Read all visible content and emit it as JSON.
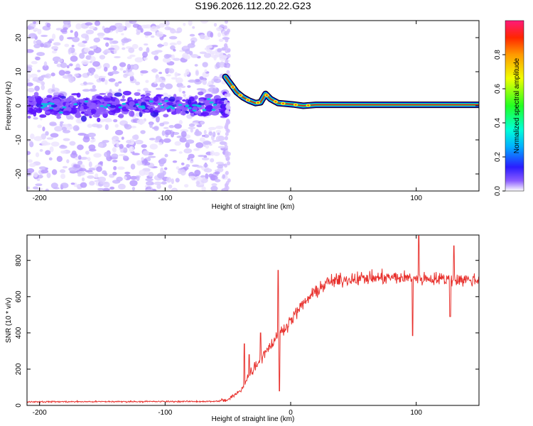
{
  "title": "S196.2026.112.20.22.G23",
  "colors": {
    "snr_line": "#e8312d",
    "outline": "#000000",
    "scatter_faint": "#d9c8ff",
    "scatter_strong": "#5a12ff"
  },
  "chart_data": [
    {
      "type": "heatmap",
      "name": "spectrogram",
      "xlabel": "Height of straight line (km)",
      "ylabel": "Frequency (Hz)",
      "xlim": [
        -210,
        150
      ],
      "ylim": [
        -25,
        25
      ],
      "xticks": [
        -200,
        -100,
        0,
        100
      ],
      "yticks": [
        -20,
        -10,
        0,
        10,
        20
      ],
      "xtick_labels": [
        "-200",
        "-100",
        "0",
        "100"
      ],
      "ytick_labels": [
        "-20",
        "-10",
        "0",
        "10",
        "20"
      ],
      "signal_ridge": [
        {
          "x": -52,
          "y": 8.5
        },
        {
          "x": -47,
          "y": 6.0
        },
        {
          "x": -43,
          "y": 4.0
        },
        {
          "x": -38,
          "y": 2.5
        },
        {
          "x": -33,
          "y": 1.5
        },
        {
          "x": -28,
          "y": 0.8
        },
        {
          "x": -24,
          "y": 1.0
        },
        {
          "x": -20,
          "y": 3.5
        },
        {
          "x": -16,
          "y": 2.0
        },
        {
          "x": -10,
          "y": 0.8
        },
        {
          "x": -4,
          "y": 0.6
        },
        {
          "x": 2,
          "y": 0.4
        },
        {
          "x": 10,
          "y": 0.0
        },
        {
          "x": 20,
          "y": 0.3
        },
        {
          "x": 60,
          "y": 0.3
        },
        {
          "x": 100,
          "y": 0.3
        },
        {
          "x": 150,
          "y": 0.3
        }
      ],
      "colorbar": {
        "label": "Normalized spectral amplitude",
        "range": [
          0,
          1
        ],
        "ticks": [
          0.0,
          0.2,
          0.4,
          0.6,
          0.8
        ],
        "tick_labels": [
          "0.0",
          "0.2",
          "0.4",
          "0.6",
          "0.8"
        ]
      }
    },
    {
      "type": "line",
      "name": "snr",
      "xlabel": "Height of straight line (km)",
      "ylabel": "SNR (10 * v/v)",
      "xlim": [
        -210,
        150
      ],
      "ylim": [
        0,
        940
      ],
      "xticks": [
        -200,
        -100,
        0,
        100
      ],
      "yticks": [
        0,
        200,
        400,
        600,
        800
      ],
      "xtick_labels": [
        "-200",
        "-100",
        "0",
        "100"
      ],
      "ytick_labels": [
        "0",
        "200",
        "400",
        "600",
        "800"
      ],
      "trend": [
        {
          "x": -210,
          "y": 20
        },
        {
          "x": -60,
          "y": 22
        },
        {
          "x": -50,
          "y": 30
        },
        {
          "x": -40,
          "y": 80
        },
        {
          "x": -30,
          "y": 200
        },
        {
          "x": -20,
          "y": 300
        },
        {
          "x": -10,
          "y": 380
        },
        {
          "x": 0,
          "y": 470
        },
        {
          "x": 10,
          "y": 560
        },
        {
          "x": 20,
          "y": 630
        },
        {
          "x": 30,
          "y": 680
        },
        {
          "x": 50,
          "y": 700
        },
        {
          "x": 80,
          "y": 705
        },
        {
          "x": 110,
          "y": 700
        },
        {
          "x": 150,
          "y": 690
        }
      ],
      "spikes": [
        {
          "x": -37,
          "y": 340
        },
        {
          "x": -33,
          "y": 280
        },
        {
          "x": -24,
          "y": 400
        },
        {
          "x": -10,
          "y": 745
        },
        {
          "x": -9,
          "y": 80
        },
        {
          "x": 97,
          "y": 385
        },
        {
          "x": 102,
          "y": 935
        },
        {
          "x": 127,
          "y": 490
        },
        {
          "x": 130,
          "y": 880
        }
      ]
    }
  ]
}
